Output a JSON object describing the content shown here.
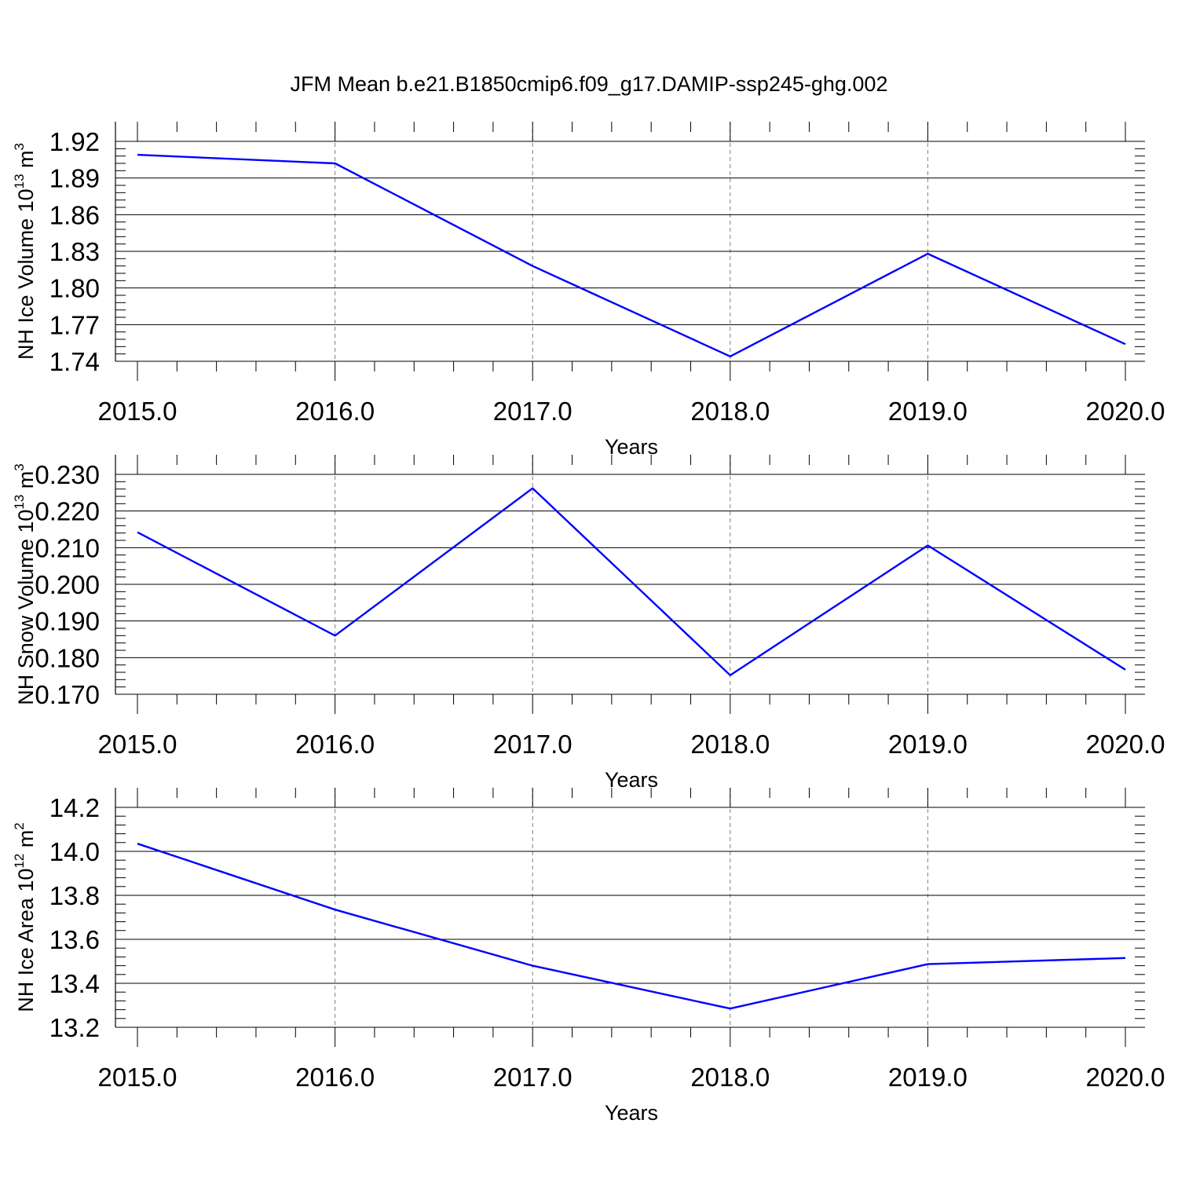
{
  "title": "JFM Mean b.e21.B1850cmip6.f09_g17.DAMIP-ssp245-ghg.002",
  "colors": {
    "line": "#0000ff",
    "axis": "#000000",
    "grid": "#808080",
    "background": "#ffffff"
  },
  "chart_data": [
    {
      "type": "line",
      "xlabel": "Years",
      "ylabel": {
        "prefix": "NH Ice Volume 10",
        "exp1": "13",
        "mid": " m",
        "exp2": "3"
      },
      "x": [
        2015,
        2016,
        2017,
        2018,
        2019,
        2020
      ],
      "x_tick_labels": [
        "2015.0",
        "2016.0",
        "2017.0",
        "2018.0",
        "2019.0",
        "2020.0"
      ],
      "values": [
        1.909,
        1.902,
        1.818,
        1.744,
        1.828,
        1.754
      ],
      "ylim": [
        1.74,
        1.92
      ],
      "y_ticks": [
        1.74,
        1.77,
        1.8,
        1.83,
        1.86,
        1.89,
        1.92
      ],
      "y_tick_labels": [
        "1.74",
        "1.77",
        "1.80",
        "1.83",
        "1.86",
        "1.89",
        "1.92"
      ],
      "x_grid": true
    },
    {
      "type": "line",
      "xlabel": "Years",
      "ylabel": {
        "prefix": "NH Snow Volume 10",
        "exp1": "13",
        "mid": " m",
        "exp2": "3"
      },
      "x": [
        2015,
        2016,
        2017,
        2018,
        2019,
        2020
      ],
      "x_tick_labels": [
        "2015.0",
        "2016.0",
        "2017.0",
        "2018.0",
        "2019.0",
        "2020.0"
      ],
      "values": [
        0.2142,
        0.186,
        0.2262,
        0.1752,
        0.2106,
        0.1767
      ],
      "ylim": [
        0.17,
        0.23
      ],
      "y_ticks": [
        0.17,
        0.18,
        0.19,
        0.2,
        0.21,
        0.22,
        0.23
      ],
      "y_tick_labels": [
        "0.170",
        "0.180",
        "0.190",
        "0.200",
        "0.210",
        "0.220",
        "0.230"
      ],
      "x_grid": true
    },
    {
      "type": "line",
      "xlabel": "Years",
      "ylabel": {
        "prefix": "NH Ice Area 10",
        "exp1": "12",
        "mid": " m",
        "exp2": "2"
      },
      "x": [
        2015,
        2016,
        2017,
        2018,
        2019,
        2020
      ],
      "x_tick_labels": [
        "2015.0",
        "2016.0",
        "2017.0",
        "2018.0",
        "2019.0",
        "2020.0"
      ],
      "values": [
        14.035,
        13.735,
        13.48,
        13.285,
        13.487,
        13.515
      ],
      "ylim": [
        13.2,
        14.2
      ],
      "y_ticks": [
        13.2,
        13.4,
        13.6,
        13.8,
        14.0,
        14.2
      ],
      "y_tick_labels": [
        "13.2",
        "13.4",
        "13.6",
        "13.8",
        "14.0",
        "14.2"
      ],
      "x_grid": true
    }
  ]
}
